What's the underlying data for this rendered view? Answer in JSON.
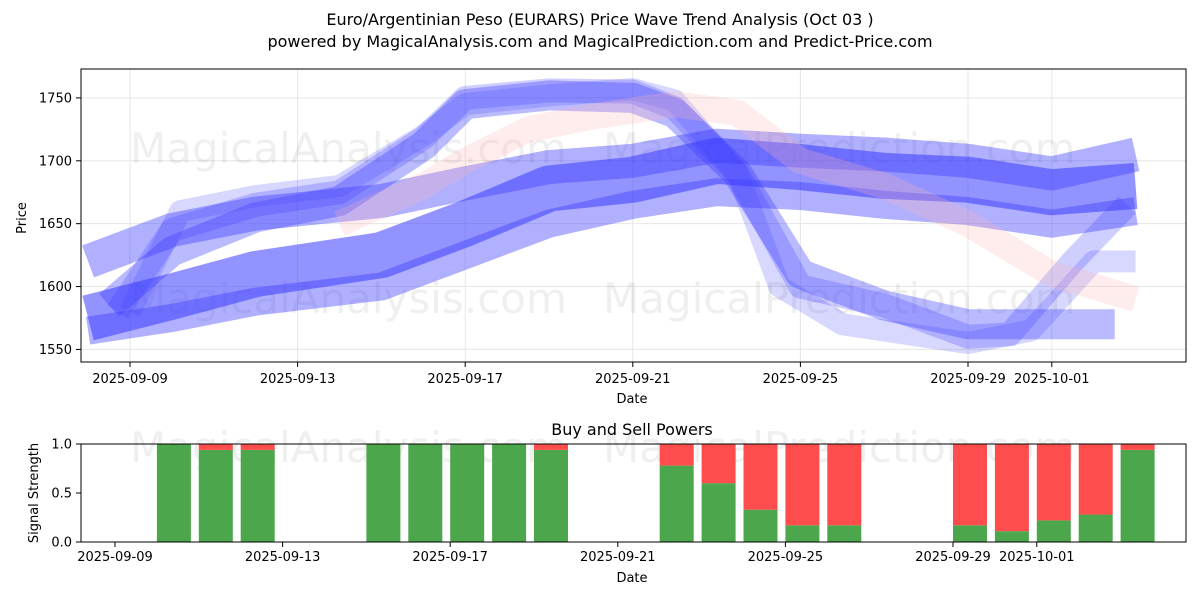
{
  "title_line1": "Euro/Argentinian Peso (EURARS) Price Wave Trend Analysis (Oct 03 )",
  "title_line2": "powered by MagicalAnalysis.com and MagicalPrediction.com and Predict-Price.com",
  "watermarks": [
    "MagicalAnalysis.com",
    "MagicalPrediction.com"
  ],
  "colors": {
    "buy": "#4ca64c",
    "sell": "#ff4d4d",
    "wave_blue": "#3a3aff",
    "wave_red": "#ffb3b3"
  },
  "chart_data": [
    {
      "type": "area",
      "title": "",
      "xlabel": "Date",
      "ylabel": "Price",
      "ylim": [
        1540,
        1773
      ],
      "yticks": [
        1550,
        1600,
        1650,
        1700,
        1750
      ],
      "xlim_days": [
        -1.2,
        24.8
      ],
      "xticks": [
        {
          "day": 0,
          "label": "2025-09-09"
        },
        {
          "day": 4,
          "label": "2025-09-13"
        },
        {
          "day": 8,
          "label": "2025-09-17"
        },
        {
          "day": 12,
          "label": "2025-09-21"
        },
        {
          "day": 16,
          "label": "2025-09-25"
        },
        {
          "day": 20,
          "label": "2025-09-29"
        },
        {
          "day": 22,
          "label": "2025-10-01"
        }
      ],
      "series": [
        {
          "name": "wave-main",
          "color": "blue",
          "width": 46,
          "opacity": 0.55,
          "points": [
            [
              -1,
              1575
            ],
            [
              1,
              1592
            ],
            [
              3,
              1610
            ],
            [
              6,
              1625
            ],
            [
              8,
              1650
            ],
            [
              10,
              1678
            ],
            [
              12,
              1685
            ],
            [
              14,
              1700
            ],
            [
              16,
              1695
            ],
            [
              18,
              1688
            ],
            [
              20,
              1685
            ],
            [
              22,
              1675
            ],
            [
              24,
              1680
            ]
          ]
        },
        {
          "name": "wave-upper",
          "color": "blue",
          "width": 34,
          "opacity": 0.4,
          "points": [
            [
              -1,
              1620
            ],
            [
              1,
              1645
            ],
            [
              3,
              1658
            ],
            [
              6,
              1668
            ],
            [
              8,
              1682
            ],
            [
              10,
              1695
            ],
            [
              12,
              1700
            ],
            [
              14,
              1712
            ],
            [
              16,
              1708
            ],
            [
              18,
              1705
            ],
            [
              20,
              1700
            ],
            [
              22,
              1690
            ],
            [
              24,
              1705
            ]
          ]
        },
        {
          "name": "wave-lower",
          "color": "blue",
          "width": 28,
          "opacity": 0.4,
          "points": [
            [
              -1,
              1565
            ],
            [
              1,
              1575
            ],
            [
              3,
              1588
            ],
            [
              6,
              1600
            ],
            [
              8,
              1625
            ],
            [
              10,
              1650
            ],
            [
              12,
              1665
            ],
            [
              14,
              1675
            ],
            [
              16,
              1672
            ],
            [
              18,
              1665
            ],
            [
              20,
              1660
            ],
            [
              22,
              1650
            ],
            [
              24,
              1660
            ]
          ]
        },
        {
          "name": "wave-peak",
          "color": "blue",
          "width": 30,
          "opacity": 0.35,
          "points": [
            [
              -0.5,
              1585
            ],
            [
              1,
              1628
            ],
            [
              3,
              1655
            ],
            [
              5,
              1668
            ],
            [
              7,
              1712
            ],
            [
              8,
              1745
            ],
            [
              10,
              1752
            ],
            [
              12,
              1750
            ],
            [
              13,
              1738
            ],
            [
              14.5,
              1690
            ],
            [
              16,
              1610
            ],
            [
              18,
              1585
            ],
            [
              20,
              1570
            ],
            [
              22,
              1570
            ],
            [
              23.5,
              1570
            ]
          ]
        },
        {
          "name": "wave-peak-2",
          "color": "blue",
          "width": 24,
          "opacity": 0.25,
          "points": [
            [
              -0.3,
              1580
            ],
            [
              1,
              1645
            ],
            [
              3,
              1665
            ],
            [
              5,
              1675
            ],
            [
              7,
              1718
            ],
            [
              8,
              1750
            ],
            [
              10,
              1756
            ],
            [
              12,
              1755
            ],
            [
              13,
              1742
            ],
            [
              14.5,
              1690
            ],
            [
              16,
              1600
            ],
            [
              18,
              1585
            ],
            [
              20,
              1560
            ],
            [
              21,
              1562
            ],
            [
              22.5,
              1620
            ],
            [
              23.8,
              1665
            ]
          ]
        },
        {
          "name": "wave-peak-3",
          "color": "blue",
          "width": 22,
          "opacity": 0.2,
          "points": [
            [
              0,
              1580
            ],
            [
              1.2,
              1660
            ],
            [
              3,
              1672
            ],
            [
              5,
              1680
            ],
            [
              7,
              1720
            ],
            [
              8,
              1745
            ],
            [
              10,
              1752
            ],
            [
              12,
              1757
            ],
            [
              13,
              1748
            ],
            [
              14.5,
              1690
            ],
            [
              15.5,
              1600
            ],
            [
              17,
              1570
            ],
            [
              20,
              1555
            ],
            [
              21.5,
              1565
            ],
            [
              23,
              1620
            ],
            [
              24,
              1620
            ]
          ]
        },
        {
          "name": "wave-red",
          "color": "red",
          "width": 26,
          "opacity": 0.25,
          "points": [
            [
              5,
              1650
            ],
            [
              7,
              1680
            ],
            [
              8,
              1700
            ],
            [
              9.5,
              1725
            ],
            [
              11,
              1735
            ],
            [
              13,
              1745
            ],
            [
              14.5,
              1738
            ],
            [
              16,
              1700
            ],
            [
              18,
              1680
            ],
            [
              20,
              1650
            ],
            [
              22,
              1610
            ],
            [
              24,
              1590
            ]
          ]
        }
      ]
    },
    {
      "type": "bar",
      "title": "Buy and Sell Powers",
      "xlabel": "Date",
      "ylabel": "Signal Strength",
      "ylim": [
        0,
        1.0
      ],
      "yticks": [
        "0.0",
        "0.5",
        "1.0"
      ],
      "xticks": [
        {
          "day": 0,
          "label": "2025-09-09"
        },
        {
          "day": 4,
          "label": "2025-09-13"
        },
        {
          "day": 8,
          "label": "2025-09-17"
        },
        {
          "day": 12,
          "label": "2025-09-21"
        },
        {
          "day": 16,
          "label": "2025-09-25"
        },
        {
          "day": 20,
          "label": "2025-09-29"
        },
        {
          "day": 22,
          "label": "2025-10-01"
        }
      ],
      "days": [
        1,
        2,
        3,
        6,
        7,
        8,
        9,
        10,
        13,
        14,
        15,
        16,
        17,
        20,
        21,
        22,
        23,
        24
      ],
      "buy": [
        1.0,
        0.94,
        0.94,
        1.0,
        1.0,
        1.0,
        1.0,
        0.94,
        0.78,
        0.6,
        0.33,
        0.17,
        0.17,
        0.17,
        0.11,
        0.22,
        0.28,
        0.94
      ],
      "sell": [
        0.0,
        0.06,
        0.06,
        0.0,
        0.0,
        0.0,
        0.0,
        0.06,
        0.22,
        0.4,
        0.67,
        0.83,
        0.83,
        0.83,
        0.89,
        0.78,
        0.72,
        0.06
      ]
    }
  ]
}
